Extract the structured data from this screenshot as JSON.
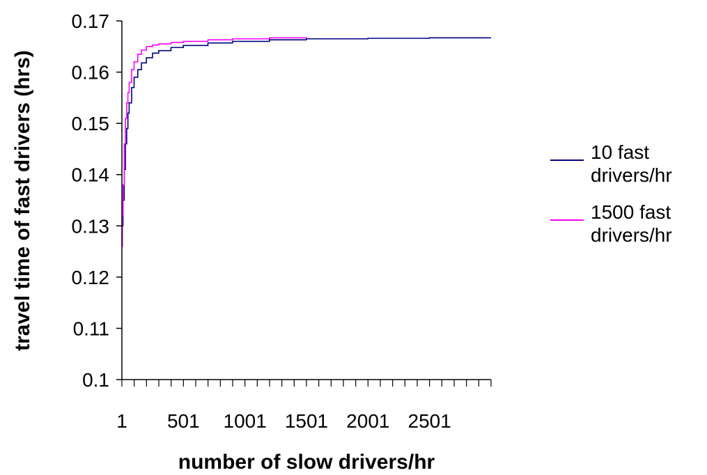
{
  "chart_data": {
    "type": "line",
    "title": "",
    "xlabel": "number of slow drivers/hr",
    "ylabel": "travel time of fast drivers (hrs)",
    "x_tick_labels": [
      "1",
      "501",
      "1001",
      "1501",
      "2001",
      "2501"
    ],
    "x_tick_values": [
      1,
      501,
      1001,
      1501,
      2001,
      2501
    ],
    "x_minor_tick_step": 100,
    "xlim": [
      1,
      3001
    ],
    "ylim": [
      0.1,
      0.17
    ],
    "y_ticks": [
      0.1,
      0.11,
      0.12,
      0.13,
      0.14,
      0.15,
      0.16,
      0.17
    ],
    "y_tick_labels": [
      "0.1",
      "0.11",
      "0.12",
      "0.13",
      "0.14",
      "0.15",
      "0.16",
      "0.17"
    ],
    "grid": false,
    "legend_position": "right",
    "series": [
      {
        "name": "10 fast drivers/hr",
        "color": "#000080",
        "x": [
          1,
          5,
          10,
          20,
          30,
          40,
          50,
          60,
          80,
          100,
          130,
          160,
          200,
          250,
          300,
          400,
          500,
          700,
          900,
          1200,
          1500,
          2000,
          2500,
          3001
        ],
        "y": [
          0.126,
          0.13,
          0.135,
          0.141,
          0.146,
          0.149,
          0.152,
          0.154,
          0.157,
          0.159,
          0.1605,
          0.1618,
          0.1628,
          0.1637,
          0.1642,
          0.1648,
          0.1652,
          0.1657,
          0.166,
          0.1663,
          0.1665,
          0.1666,
          0.1667,
          0.1667
        ]
      },
      {
        "name": "1500 fast drivers/hr",
        "color": "#ff00ff",
        "x": [
          1,
          5,
          10,
          20,
          30,
          40,
          50,
          60,
          80,
          100,
          130,
          160,
          200,
          250,
          300,
          400,
          500,
          700,
          900,
          1200,
          1501
        ],
        "y": [
          0.126,
          0.132,
          0.138,
          0.146,
          0.151,
          0.154,
          0.156,
          0.158,
          0.1605,
          0.162,
          0.1635,
          0.1643,
          0.165,
          0.1653,
          0.1655,
          0.1658,
          0.166,
          0.1663,
          0.1665,
          0.1667,
          0.1668
        ]
      }
    ]
  }
}
